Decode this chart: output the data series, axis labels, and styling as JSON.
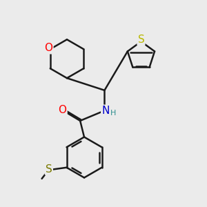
{
  "bg_color": "#ebebeb",
  "bond_color": "#1a1a1a",
  "bond_width": 1.8,
  "atom_colors": {
    "O": "#ff0000",
    "N": "#0000cd",
    "S_thiophene": "#b8b800",
    "S_sulfanyl": "#7a7a00",
    "H": "#2f8f8f"
  },
  "font_size_large": 11,
  "font_size_small": 8
}
